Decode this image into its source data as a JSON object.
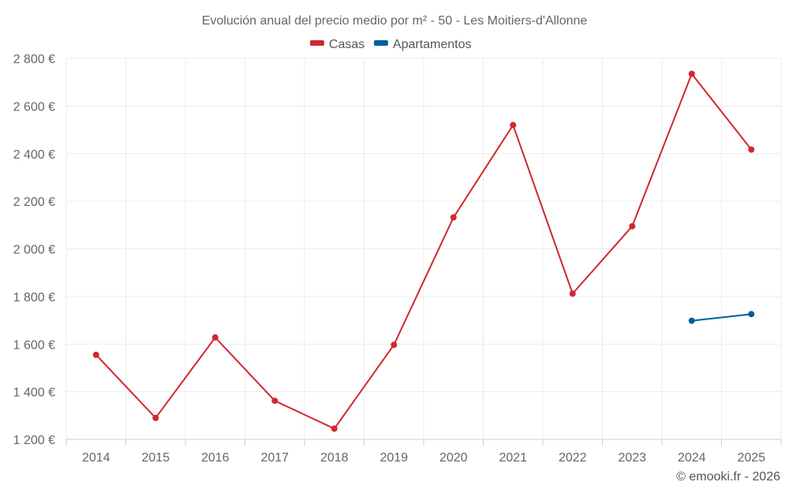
{
  "chart_data": {
    "type": "line",
    "title": "Evolución anual del precio medio por m² - 50 - Les Moitiers-d'Allonne",
    "categories": [
      "2014",
      "2015",
      "2016",
      "2017",
      "2018",
      "2019",
      "2020",
      "2021",
      "2022",
      "2023",
      "2024",
      "2025"
    ],
    "series": [
      {
        "name": "Casas",
        "color": "#d0282e",
        "values": [
          1555,
          1290,
          1628,
          1362,
          1245,
          1597,
          2132,
          2520,
          1812,
          2095,
          2735,
          2417
        ]
      },
      {
        "name": "Apartamentos",
        "color": "#005f9c",
        "values": [
          null,
          null,
          null,
          null,
          null,
          null,
          null,
          null,
          null,
          null,
          1698,
          1726
        ]
      }
    ],
    "ylim": [
      1200,
      2800
    ],
    "yticks": [
      1200,
      1400,
      1600,
      1800,
      2000,
      2200,
      2400,
      2600,
      2800
    ],
    "ytick_labels": [
      "1 200 €",
      "1 400 €",
      "1 600 €",
      "1 800 €",
      "2 000 €",
      "2 200 €",
      "2 400 €",
      "2 600 €",
      "2 800 €"
    ],
    "xlabel": "",
    "ylabel": "",
    "grid": true,
    "legend_position": "top-center"
  },
  "credit": "© emooki.fr - 2026"
}
